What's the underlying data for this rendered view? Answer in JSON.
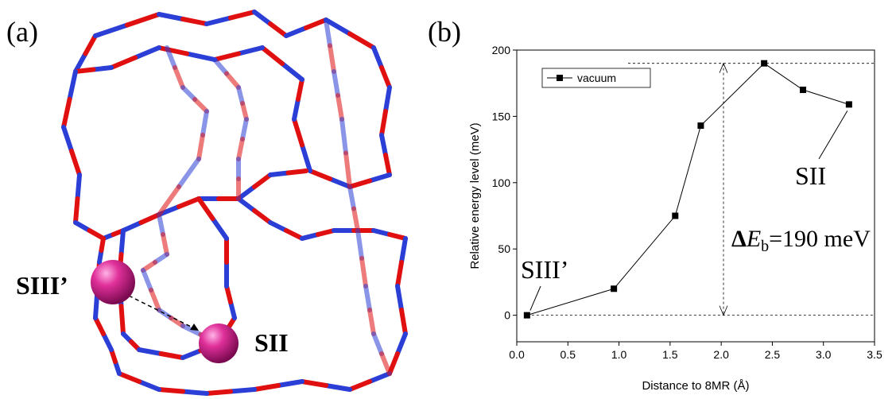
{
  "panel_a": {
    "label": "(a)",
    "site_labels": [
      "SIII’",
      "SII"
    ]
  },
  "chart_data": {
    "type": "line",
    "panel_label": "(b)",
    "x_label": "Distance to 8MR (Å)",
    "y_label": "Relative energy level (meV)",
    "series": [
      {
        "name": "vacuum",
        "color": "#000000",
        "x": [
          0.1,
          0.95,
          1.55,
          1.8,
          2.42,
          2.8,
          3.25
        ],
        "values": [
          0,
          20,
          75,
          143,
          190,
          170,
          159
        ]
      }
    ],
    "xlim": [
      0,
      3.5
    ],
    "ylim": [
      -20,
      200
    ],
    "xticks": [
      {
        "value": 0,
        "label": "0.0"
      },
      0.5,
      {
        "value": 1,
        "label": "1.0"
      },
      1.5,
      {
        "value": 2,
        "label": "2.0"
      },
      2.5,
      {
        "value": 3,
        "label": "3.0"
      },
      3.5
    ],
    "yticks": [
      0,
      50,
      100,
      150,
      200
    ],
    "legend": "upper-left",
    "annotations": {
      "start": "SIII’",
      "end": "SII",
      "barrier": [
        "Δ",
        "E",
        "b",
        "=190 meV"
      ]
    }
  }
}
